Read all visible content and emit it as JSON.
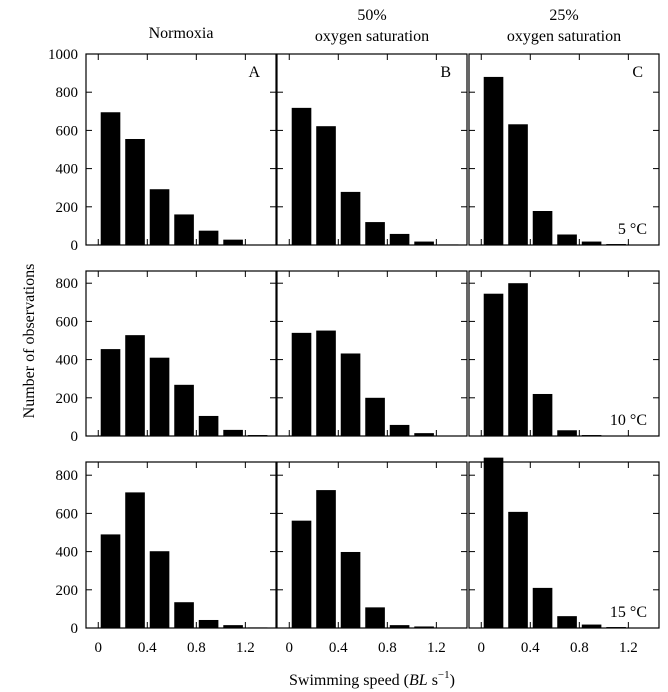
{
  "column_titles": [
    [
      "Normoxia"
    ],
    [
      "50%",
      "oxygen saturation"
    ],
    [
      "25%",
      "oxygen saturation"
    ]
  ],
  "panel_letters": [
    "A",
    "B",
    "C"
  ],
  "row_labels": [
    "5 °C",
    "10 °C",
    "15 °C"
  ],
  "ylabel": "Number of observations",
  "xlabel": {
    "prefix": "Swimming speed (",
    "italic": "BL",
    "mid": " s",
    "sup": "−1",
    "suffix": ")"
  },
  "x_tick_labels": [
    "0",
    "0.4",
    "0.8",
    "1.2"
  ],
  "chart_data": {
    "type": "bar",
    "layout": "3x3 grid, shared axes",
    "bin_centers": [
      0.1,
      0.3,
      0.5,
      0.7,
      0.9,
      1.1,
      1.3
    ],
    "xlim": [
      -0.1,
      1.45
    ],
    "xticks": [
      0,
      0.4,
      0.8,
      1.2
    ],
    "ylim": [
      0,
      1000
    ],
    "yticks_top_row": [
      0,
      200,
      400,
      600,
      800,
      1000
    ],
    "yticks_other_rows": [
      0,
      200,
      400,
      600,
      800
    ],
    "panels": [
      {
        "row": 0,
        "col": 0,
        "condition": "Normoxia",
        "temperature": "5 °C",
        "values": [
          695,
          555,
          292,
          160,
          75,
          28,
          0
        ]
      },
      {
        "row": 0,
        "col": 1,
        "condition": "50% oxygen saturation",
        "temperature": "5 °C",
        "values": [
          718,
          622,
          278,
          120,
          58,
          18,
          3
        ]
      },
      {
        "row": 0,
        "col": 2,
        "condition": "25% oxygen saturation",
        "temperature": "5 °C",
        "values": [
          880,
          632,
          178,
          55,
          18,
          5,
          0
        ]
      },
      {
        "row": 1,
        "col": 0,
        "condition": "Normoxia",
        "temperature": "10 °C",
        "values": [
          455,
          528,
          410,
          268,
          105,
          32,
          5
        ]
      },
      {
        "row": 1,
        "col": 1,
        "condition": "50% oxygen saturation",
        "temperature": "10 °C",
        "values": [
          540,
          552,
          432,
          200,
          58,
          15,
          0
        ]
      },
      {
        "row": 1,
        "col": 2,
        "condition": "25% oxygen saturation",
        "temperature": "10 °C",
        "values": [
          745,
          800,
          220,
          30,
          5,
          0,
          0
        ]
      },
      {
        "row": 2,
        "col": 0,
        "condition": "Normoxia",
        "temperature": "15 °C",
        "values": [
          490,
          710,
          402,
          135,
          42,
          15,
          3
        ]
      },
      {
        "row": 2,
        "col": 1,
        "condition": "50% oxygen saturation",
        "temperature": "15 °C",
        "values": [
          562,
          722,
          398,
          108,
          15,
          8,
          0
        ]
      },
      {
        "row": 2,
        "col": 2,
        "condition": "25% oxygen saturation",
        "temperature": "15 °C",
        "values": [
          892,
          608,
          210,
          62,
          18,
          5,
          0
        ]
      }
    ]
  }
}
